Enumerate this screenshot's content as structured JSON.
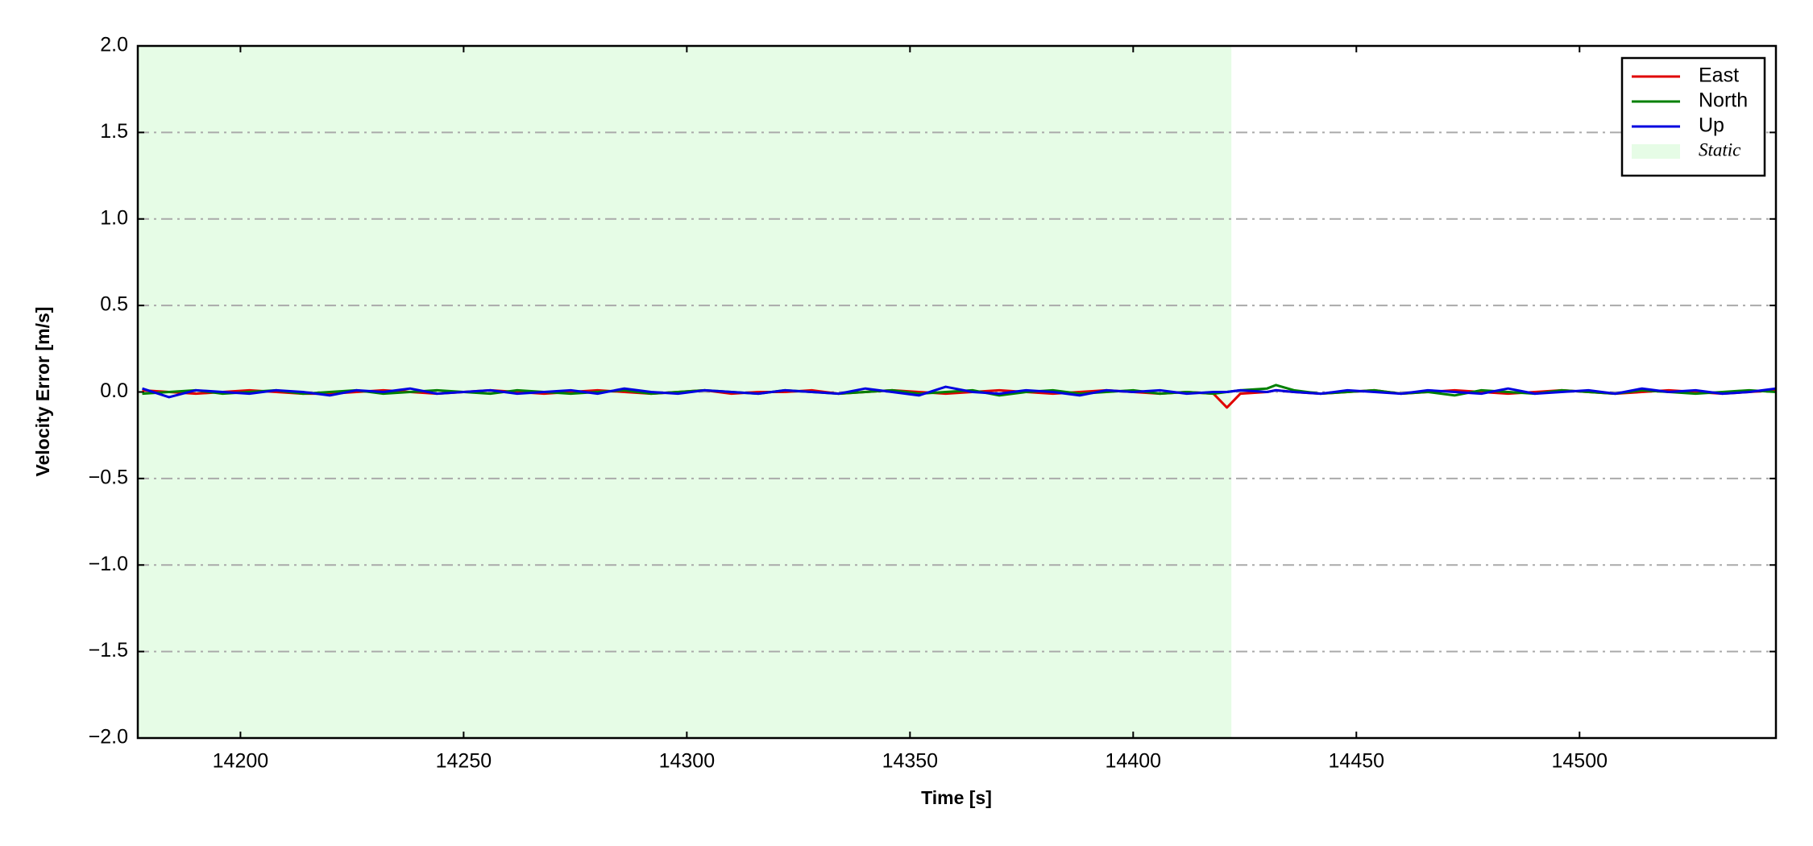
{
  "chart_data": {
    "type": "line",
    "xlabel": "Time [s]",
    "ylabel": "Velocity Error [m/s]",
    "x": [
      14178,
      14184,
      14190,
      14196,
      14202,
      14208,
      14214,
      14220,
      14226,
      14232,
      14238,
      14244,
      14250,
      14256,
      14262,
      14268,
      14274,
      14280,
      14286,
      14292,
      14298,
      14304,
      14310,
      14316,
      14322,
      14328,
      14334,
      14340,
      14346,
      14352,
      14358,
      14364,
      14370,
      14376,
      14382,
      14388,
      14394,
      14400,
      14406,
      14412,
      14418,
      14421,
      14424,
      14430,
      14432,
      14436,
      14442,
      14448,
      14454,
      14460,
      14466,
      14472,
      14478,
      14484,
      14490,
      14496,
      14502,
      14508,
      14514,
      14520,
      14526,
      14532,
      14538,
      14544
    ],
    "series": [
      {
        "name": "East",
        "color": "#e00000",
        "values": [
          0.01,
          0.0,
          -0.01,
          0.0,
          0.01,
          0.0,
          -0.01,
          -0.01,
          0.0,
          0.01,
          0.0,
          -0.01,
          0.0,
          0.01,
          0.0,
          -0.01,
          0.0,
          0.01,
          0.0,
          -0.01,
          0.0,
          0.01,
          -0.01,
          0.0,
          0.0,
          0.01,
          -0.01,
          0.0,
          0.01,
          0.0,
          -0.01,
          0.0,
          0.01,
          0.0,
          -0.01,
          0.0,
          0.01,
          0.0,
          -0.01,
          0.0,
          -0.01,
          -0.09,
          -0.01,
          0.0,
          0.01,
          0.0,
          -0.01,
          0.0,
          0.01,
          -0.01,
          0.0,
          0.01,
          0.0,
          -0.01,
          0.0,
          0.01,
          0.0,
          -0.01,
          0.0,
          0.01,
          0.0,
          -0.01,
          0.0,
          0.01
        ]
      },
      {
        "name": "North",
        "color": "#008000",
        "values": [
          -0.01,
          0.0,
          0.01,
          -0.01,
          0.0,
          0.01,
          -0.01,
          0.0,
          0.01,
          -0.01,
          0.0,
          0.01,
          0.0,
          -0.01,
          0.01,
          0.0,
          -0.01,
          0.0,
          0.01,
          -0.01,
          0.0,
          0.01,
          0.0,
          -0.01,
          0.01,
          0.0,
          -0.01,
          0.0,
          0.01,
          -0.01,
          0.0,
          0.01,
          -0.02,
          0.0,
          0.01,
          -0.01,
          0.0,
          0.01,
          -0.01,
          0.0,
          -0.01,
          0.0,
          0.01,
          0.02,
          0.04,
          0.01,
          -0.01,
          0.0,
          0.01,
          -0.01,
          0.0,
          -0.02,
          0.01,
          0.0,
          -0.01,
          0.01,
          0.0,
          -0.01,
          0.01,
          0.0,
          -0.01,
          0.0,
          0.01,
          0.0
        ]
      },
      {
        "name": "Up",
        "color": "#0000e0",
        "values": [
          0.02,
          -0.03,
          0.01,
          0.0,
          -0.01,
          0.01,
          0.0,
          -0.02,
          0.01,
          0.0,
          0.02,
          -0.01,
          0.0,
          0.01,
          -0.01,
          0.0,
          0.01,
          -0.01,
          0.02,
          0.0,
          -0.01,
          0.01,
          0.0,
          -0.01,
          0.01,
          0.0,
          -0.01,
          0.02,
          0.0,
          -0.02,
          0.03,
          0.0,
          -0.01,
          0.01,
          0.0,
          -0.02,
          0.01,
          0.0,
          0.01,
          -0.01,
          0.0,
          0.0,
          0.01,
          0.0,
          0.01,
          0.0,
          -0.01,
          0.01,
          0.0,
          -0.01,
          0.01,
          0.0,
          -0.01,
          0.02,
          -0.01,
          0.0,
          0.01,
          -0.01,
          0.02,
          0.0,
          0.01,
          -0.01,
          0.0,
          0.02
        ]
      }
    ],
    "shaded_region": {
      "label": "Static",
      "x": [
        14177,
        14422
      ],
      "color": "#e6fce6"
    },
    "xlim": [
      14177,
      14544
    ],
    "xticks": [
      14200,
      14250,
      14300,
      14350,
      14400,
      14450,
      14500
    ],
    "ylim": [
      -2,
      2
    ],
    "yticks": [
      {
        "value": -2,
        "label": "−2.0"
      },
      {
        "value": -1.5,
        "label": "−1.5"
      },
      {
        "value": -1,
        "label": "−1.0"
      },
      {
        "value": -0.5,
        "label": "−0.5"
      },
      {
        "value": 0,
        "label": "0.0"
      },
      {
        "value": 0.5,
        "label": "0.5"
      },
      {
        "value": 1,
        "label": "1.0"
      },
      {
        "value": 1.5,
        "label": "1.5"
      },
      {
        "value": 2,
        "label": "2.0"
      }
    ],
    "grid": true,
    "legend": "upper right"
  }
}
